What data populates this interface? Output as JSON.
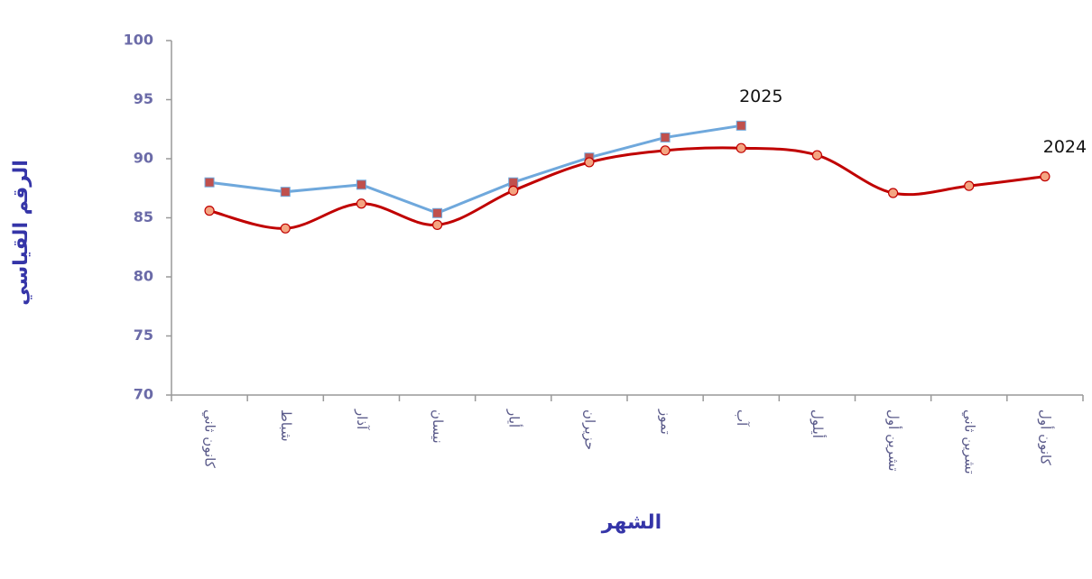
{
  "chart_data": {
    "type": "line",
    "x_label": "الشهر",
    "y_label": "الرقم القياسي",
    "categories": [
      "كانون ثاني",
      "شباط",
      "آذار",
      "نيسان",
      "أيار",
      "حزيران",
      "تموز",
      "آب",
      "أيلول",
      "تشرين أول",
      "تشرين ثاني",
      "كانون أول"
    ],
    "series": [
      {
        "name": "2025",
        "color": "#6fa8dc",
        "marker_color": "#c0504d",
        "marker": "square",
        "smooth": false,
        "values": [
          88.0,
          87.2,
          87.8,
          85.4,
          88.0,
          90.1,
          91.8,
          92.8,
          null,
          null,
          null,
          null
        ]
      },
      {
        "name": "2024",
        "color": "#c00000",
        "marker_color": "#f4a582",
        "marker": "circle",
        "smooth": true,
        "values": [
          85.6,
          84.1,
          86.2,
          84.4,
          87.3,
          89.7,
          90.7,
          90.9,
          90.3,
          87.1,
          87.7,
          88.5
        ]
      }
    ],
    "ylim": [
      70,
      100
    ],
    "yticks": [
      70,
      75,
      80,
      85,
      90,
      95,
      100
    ],
    "grid": false
  }
}
